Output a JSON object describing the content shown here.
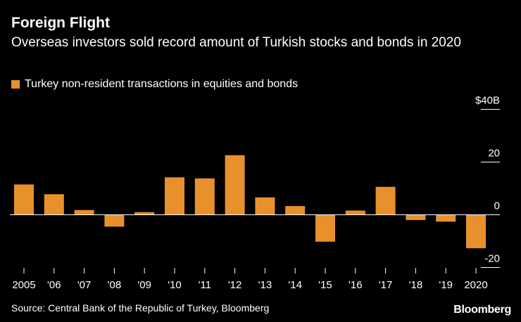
{
  "title": "Foreign Flight",
  "subtitle": "Overseas investors sold record amount of Turkish stocks and bonds in 2020",
  "source": "Source: Central Bank of the Republic of Turkey, Bloomberg",
  "logo": "Bloomberg",
  "colors": {
    "bar": "#e8912c",
    "background": "#000000",
    "text": "#ffffff",
    "axis": "#ffffff",
    "grid": "#ffffff"
  },
  "chart_data": {
    "type": "bar",
    "legend": "Turkey non-resident transactions in equities and bonds",
    "categories": [
      "2005",
      "'06",
      "'07",
      "'08",
      "'09",
      "'10",
      "'11",
      "'12",
      "'13",
      "'14",
      "'15",
      "'16",
      "'17",
      "'18",
      "'19",
      "2020"
    ],
    "series": [
      {
        "name": "Turkey non-resident transactions in equities and bonds",
        "values": [
          11.5,
          7.8,
          1.8,
          -4.5,
          1.0,
          14.2,
          13.8,
          22.6,
          6.6,
          3.3,
          -10.2,
          1.6,
          10.6,
          -2.0,
          -2.6,
          -12.7
        ]
      }
    ],
    "yticks": [
      {
        "value": 40,
        "label": "$40B"
      },
      {
        "value": 20,
        "label": "20"
      },
      {
        "value": 0,
        "label": "0"
      },
      {
        "value": -20,
        "label": "-20"
      }
    ],
    "ylim": [
      -20,
      40
    ],
    "xlabel": "",
    "ylabel": "",
    "legend_position": "top-left",
    "grid": true
  }
}
